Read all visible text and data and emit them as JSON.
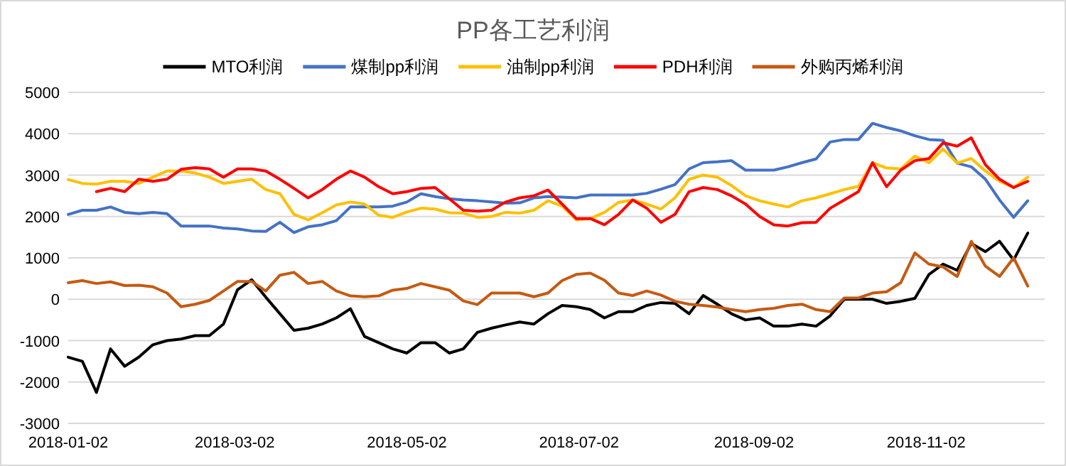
{
  "chart_data": {
    "type": "line",
    "title": "PP各工艺利润",
    "legend": "top",
    "grid": "y",
    "marker": "none",
    "line_style": "solid",
    "x": [
      "2018-01-02",
      "2018-01-07",
      "2018-01-12",
      "2018-01-17",
      "2018-01-22",
      "2018-01-27",
      "2018-02-01",
      "2018-02-06",
      "2018-02-11",
      "2018-02-16",
      "2018-02-21",
      "2018-02-26",
      "2018-03-03",
      "2018-03-08",
      "2018-03-13",
      "2018-03-18",
      "2018-03-23",
      "2018-03-28",
      "2018-04-02",
      "2018-04-07",
      "2018-04-12",
      "2018-04-17",
      "2018-04-22",
      "2018-04-27",
      "2018-05-02",
      "2018-05-07",
      "2018-05-12",
      "2018-05-17",
      "2018-05-22",
      "2018-05-27",
      "2018-06-01",
      "2018-06-06",
      "2018-06-11",
      "2018-06-16",
      "2018-06-21",
      "2018-06-26",
      "2018-07-01",
      "2018-07-06",
      "2018-07-11",
      "2018-07-16",
      "2018-07-21",
      "2018-07-26",
      "2018-07-31",
      "2018-08-05",
      "2018-08-10",
      "2018-08-15",
      "2018-08-20",
      "2018-08-25",
      "2018-08-30",
      "2018-09-04",
      "2018-09-09",
      "2018-09-14",
      "2018-09-19",
      "2018-09-24",
      "2018-09-29",
      "2018-10-04",
      "2018-10-09",
      "2018-10-14",
      "2018-10-19",
      "2018-10-24",
      "2018-10-29",
      "2018-11-03",
      "2018-11-08",
      "2018-11-13",
      "2018-11-18",
      "2018-11-23",
      "2018-11-28",
      "2018-12-03",
      "2018-12-08"
    ],
    "xlim": [
      "2018-01-02",
      "2018-12-14"
    ],
    "xticks": [
      "2018-01-02",
      "2018-03-02",
      "2018-05-02",
      "2018-07-02",
      "2018-09-02",
      "2018-11-02"
    ],
    "ylim": [
      -3000,
      5000
    ],
    "yticks": [
      -3000,
      -2000,
      -1000,
      0,
      1000,
      2000,
      3000,
      4000,
      5000
    ],
    "series": [
      {
        "name": "MTO利润",
        "color": "#000000",
        "values": [
          -1400,
          -1500,
          -2250,
          -1200,
          -1620,
          -1400,
          -1100,
          -1000,
          -960,
          -880,
          -880,
          -600,
          230,
          470,
          50,
          -350,
          -750,
          -700,
          -600,
          -450,
          -230,
          -900,
          -1050,
          -1200,
          -1300,
          -1050,
          -1050,
          -1300,
          -1200,
          -800,
          -700,
          -620,
          -550,
          -600,
          -350,
          -150,
          -180,
          -250,
          -450,
          -300,
          -300,
          -150,
          -80,
          -100,
          -350,
          90,
          -120,
          -350,
          -500,
          -450,
          -650,
          -650,
          -600,
          -650,
          -400,
          0,
          0,
          0,
          -100,
          -50,
          20,
          600,
          850,
          700,
          1350,
          1150,
          1400,
          950,
          1600
        ]
      },
      {
        "name": "煤制pp利润",
        "color": "#4472c4",
        "values": [
          2050,
          2150,
          2150,
          2230,
          2100,
          2070,
          2100,
          2070,
          1770,
          1770,
          1770,
          1720,
          1700,
          1650,
          1640,
          1860,
          1610,
          1750,
          1800,
          1900,
          2230,
          2230,
          2230,
          2250,
          2350,
          2550,
          2480,
          2430,
          2400,
          2380,
          2350,
          2320,
          2330,
          2450,
          2480,
          2470,
          2450,
          2520,
          2520,
          2520,
          2520,
          2560,
          2660,
          2770,
          3150,
          3300,
          3320,
          3350,
          3120,
          3120,
          3120,
          3200,
          3300,
          3390,
          3800,
          3860,
          3860,
          4250,
          4150,
          4070,
          3950,
          3860,
          3840,
          3290,
          3200,
          2900,
          2400,
          1980,
          2380
        ]
      },
      {
        "name": "油制pp利润",
        "color": "#ffc000",
        "values": [
          2890,
          2800,
          2780,
          2850,
          2850,
          2800,
          2950,
          3100,
          3100,
          3050,
          2950,
          2800,
          2850,
          2900,
          2650,
          2550,
          2050,
          1920,
          2090,
          2280,
          2350,
          2300,
          2030,
          1980,
          2110,
          2200,
          2180,
          2090,
          2080,
          1980,
          2000,
          2100,
          2080,
          2150,
          2380,
          2250,
          1920,
          1950,
          2100,
          2340,
          2400,
          2300,
          2180,
          2450,
          2900,
          3000,
          2950,
          2750,
          2500,
          2380,
          2300,
          2230,
          2380,
          2450,
          2550,
          2650,
          2730,
          3300,
          3170,
          3150,
          3460,
          3300,
          3630,
          3290,
          3400,
          3100,
          2850,
          2700,
          2950
        ]
      },
      {
        "name": "PDH利润",
        "color": "#ff0000",
        "values": [
          null,
          null,
          2600,
          2680,
          2600,
          2900,
          2850,
          2900,
          3140,
          3180,
          3150,
          2950,
          3150,
          3150,
          3100,
          2900,
          2680,
          2450,
          2650,
          2900,
          3100,
          2950,
          2720,
          2550,
          2600,
          2680,
          2700,
          2430,
          2150,
          2130,
          2150,
          2350,
          2450,
          2500,
          2640,
          2300,
          1950,
          1950,
          1800,
          2050,
          2400,
          2200,
          1860,
          2050,
          2600,
          2700,
          2650,
          2500,
          2300,
          2000,
          1800,
          1770,
          1850,
          1860,
          2200,
          2400,
          2600,
          3300,
          2720,
          3120,
          3350,
          3400,
          3780,
          3700,
          3900,
          3250,
          2900,
          2700,
          2850
        ]
      },
      {
        "name": "外购丙烯利润",
        "color": "#c55a11",
        "values": [
          400,
          450,
          380,
          420,
          330,
          340,
          300,
          150,
          -180,
          -120,
          -30,
          200,
          430,
          430,
          200,
          580,
          650,
          380,
          430,
          200,
          80,
          60,
          80,
          220,
          260,
          380,
          300,
          220,
          -40,
          -130,
          150,
          150,
          150,
          60,
          150,
          450,
          600,
          630,
          460,
          150,
          90,
          200,
          100,
          -50,
          -120,
          -150,
          -190,
          -250,
          -300,
          -250,
          -220,
          -150,
          -120,
          -250,
          -300,
          30,
          30,
          150,
          180,
          400,
          1120,
          850,
          780,
          550,
          1400,
          800,
          550,
          1000,
          320
        ]
      }
    ]
  }
}
